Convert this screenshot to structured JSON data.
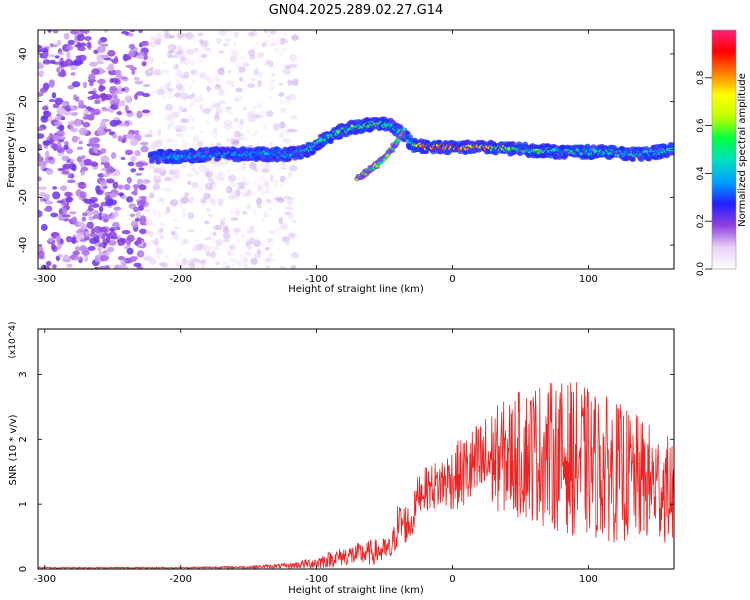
{
  "title": "GN04.2025.289.02.27.G14",
  "chart_data": [
    {
      "type": "heatmap",
      "title": "GN04.2025.289.02.27.G14",
      "xlabel": "Height of straight line (km)",
      "ylabel": "Frequency (Hz)",
      "xlim": [
        -305,
        163
      ],
      "ylim": [
        -50,
        50
      ],
      "xticks": [
        -300,
        -200,
        -100,
        0,
        100
      ],
      "yticks": [
        -40,
        -20,
        0,
        20,
        40
      ],
      "colorbar": {
        "label": "Normalized spectral amplitude",
        "range": [
          0,
          1
        ],
        "ticks": [
          0.0,
          0.2,
          0.4,
          0.6,
          0.8
        ],
        "colormap": [
          "#ffffff",
          "#e8d0f8",
          "#9040e0",
          "#2020ff",
          "#00a0ff",
          "#00e0c0",
          "#00ff40",
          "#c0ff00",
          "#ffff00",
          "#ff8000",
          "#ff0000",
          "#ff2080"
        ]
      },
      "ridge": [
        {
          "x": -220,
          "freq": -3,
          "amp": 0.35
        },
        {
          "x": -200,
          "freq": -3,
          "amp": 0.4
        },
        {
          "x": -180,
          "freq": -2,
          "amp": 0.4
        },
        {
          "x": -160,
          "freq": -2,
          "amp": 0.4
        },
        {
          "x": -140,
          "freq": -2,
          "amp": 0.4
        },
        {
          "x": -120,
          "freq": -2,
          "amp": 0.4
        },
        {
          "x": -105,
          "freq": 0,
          "amp": 0.45
        },
        {
          "x": -95,
          "freq": 4,
          "amp": 0.5
        },
        {
          "x": -85,
          "freq": 7,
          "amp": 0.55
        },
        {
          "x": -75,
          "freq": 9,
          "amp": 0.55
        },
        {
          "x": -65,
          "freq": 10,
          "amp": 0.55
        },
        {
          "x": -55,
          "freq": 11,
          "amp": 0.55
        },
        {
          "x": -45,
          "freq": 10,
          "amp": 0.5
        },
        {
          "x": -35,
          "freq": 6,
          "amp": 0.5
        },
        {
          "x": -30,
          "freq": 2,
          "amp": 0.6
        },
        {
          "x": -20,
          "freq": 1,
          "amp": 0.85
        },
        {
          "x": 0,
          "freq": 1,
          "amp": 0.85
        },
        {
          "x": 20,
          "freq": 1,
          "amp": 0.8
        },
        {
          "x": 50,
          "freq": 0,
          "amp": 0.6
        },
        {
          "x": 80,
          "freq": -1,
          "amp": 0.5
        },
        {
          "x": 110,
          "freq": -1,
          "amp": 0.5
        },
        {
          "x": 140,
          "freq": -2,
          "amp": 0.45
        },
        {
          "x": 163,
          "freq": 0,
          "amp": 0.45
        }
      ],
      "branch": [
        {
          "x": -70,
          "freq": -12
        },
        {
          "x": -60,
          "freq": -8
        },
        {
          "x": -50,
          "freq": -4
        },
        {
          "x": -45,
          "freq": 0
        },
        {
          "x": -40,
          "freq": 4
        },
        {
          "x": -35,
          "freq": 9
        }
      ]
    },
    {
      "type": "line",
      "xlabel": "Height of straight line (km)",
      "ylabel": "SNR (10 * v/v)",
      "multiplier": "(x10^4)",
      "xlim": [
        -305,
        163
      ],
      "ylim": [
        0,
        3.7
      ],
      "xticks": [
        -300,
        -200,
        -100,
        0,
        100
      ],
      "yticks": [
        0,
        1,
        2,
        3
      ],
      "color": "#ee2222",
      "envelope": [
        {
          "x": -305,
          "mean": 0.02,
          "spread": 0.01
        },
        {
          "x": -200,
          "mean": 0.02,
          "spread": 0.01
        },
        {
          "x": -150,
          "mean": 0.03,
          "spread": 0.02
        },
        {
          "x": -120,
          "mean": 0.05,
          "spread": 0.04
        },
        {
          "x": -100,
          "mean": 0.1,
          "spread": 0.1
        },
        {
          "x": -80,
          "mean": 0.2,
          "spread": 0.15
        },
        {
          "x": -60,
          "mean": 0.25,
          "spread": 0.2
        },
        {
          "x": -45,
          "mean": 0.3,
          "spread": 0.2
        },
        {
          "x": -40,
          "mean": 0.7,
          "spread": 0.35
        },
        {
          "x": -30,
          "mean": 0.7,
          "spread": 0.3
        },
        {
          "x": -25,
          "mean": 1.2,
          "spread": 0.3
        },
        {
          "x": -10,
          "mean": 1.3,
          "spread": 0.4
        },
        {
          "x": 10,
          "mean": 1.5,
          "spread": 0.6
        },
        {
          "x": 30,
          "mean": 1.7,
          "spread": 0.8
        },
        {
          "x": 60,
          "mean": 1.8,
          "spread": 1.1
        },
        {
          "x": 90,
          "mean": 1.7,
          "spread": 1.2
        },
        {
          "x": 120,
          "mean": 1.5,
          "spread": 1.1
        },
        {
          "x": 163,
          "mean": 1.2,
          "spread": 0.8
        }
      ]
    }
  ]
}
